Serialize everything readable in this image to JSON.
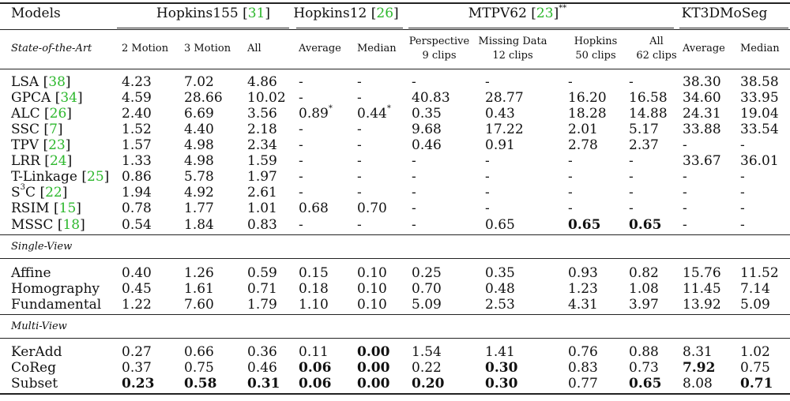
{
  "headers": {
    "models": "Models",
    "groups": [
      {
        "name": "Hopkins155",
        "cite": "31",
        "suffix": ""
      },
      {
        "name": "Hopkins12",
        "cite": "26",
        "suffix": ""
      },
      {
        "name": "MTPV62",
        "cite": "23",
        "suffix": "**"
      },
      {
        "name": "KT3DMoSeg",
        "cite": "",
        "suffix": ""
      }
    ],
    "subheaders": {
      "state_of_the_art": "State-of-the-Art",
      "cols": [
        {
          "l1": "2 Motion",
          "l2": ""
        },
        {
          "l1": "3 Motion",
          "l2": ""
        },
        {
          "l1": "All",
          "l2": ""
        },
        {
          "l1": "Average",
          "l2": ""
        },
        {
          "l1": "Median",
          "l2": ""
        },
        {
          "l1": "Perspective",
          "l2": "9 clips"
        },
        {
          "l1": "Missing Data",
          "l2": "12 clips"
        },
        {
          "l1": "Hopkins",
          "l2": "50 clips"
        },
        {
          "l1": "All",
          "l2": "62 clips"
        },
        {
          "l1": "Average",
          "l2": ""
        },
        {
          "l1": "Median",
          "l2": ""
        }
      ]
    }
  },
  "sections": [
    {
      "title": "",
      "rows": [
        {
          "name": "LSA",
          "cite": "38",
          "vals": [
            "4.23",
            "7.02",
            "4.86",
            "-",
            "-",
            "-",
            "-",
            "-",
            "-",
            "38.30",
            "38.58"
          ],
          "bold": []
        },
        {
          "name": "GPCA",
          "cite": "34",
          "vals": [
            "4.59",
            "28.66",
            "10.02",
            "-",
            "-",
            "40.83",
            "28.77",
            "16.20",
            "16.58",
            "34.60",
            "33.95"
          ],
          "bold": []
        },
        {
          "name": "ALC",
          "cite": "26",
          "vals": [
            "2.40",
            "6.69",
            "3.56",
            "0.89*",
            "0.44*",
            "0.35",
            "0.43",
            "18.28",
            "14.88",
            "24.31",
            "19.04"
          ],
          "bold": []
        },
        {
          "name": "SSC",
          "cite": "7",
          "vals": [
            "1.52",
            "4.40",
            "2.18",
            "-",
            "-",
            "9.68",
            "17.22",
            "2.01",
            "5.17",
            "33.88",
            "33.54"
          ],
          "bold": []
        },
        {
          "name": "TPV",
          "cite": "23",
          "vals": [
            "1.57",
            "4.98",
            "2.34",
            "-",
            "-",
            "0.46",
            "0.91",
            "2.78",
            "2.37",
            "-",
            "-"
          ],
          "bold": []
        },
        {
          "name": "LRR",
          "cite": "24",
          "vals": [
            "1.33",
            "4.98",
            "1.59",
            "-",
            "-",
            "-",
            "-",
            "-",
            "-",
            "33.67",
            "36.01"
          ],
          "bold": []
        },
        {
          "name": "T-Linkage",
          "cite": "25",
          "vals": [
            "0.86",
            "5.78",
            "1.97",
            "-",
            "-",
            "-",
            "-",
            "-",
            "-",
            "-",
            "-"
          ],
          "bold": []
        },
        {
          "name": "S³C",
          "cite": "22",
          "vals": [
            "1.94",
            "4.92",
            "2.61",
            "-",
            "-",
            "-",
            "-",
            "-",
            "-",
            "-",
            "-"
          ],
          "bold": []
        },
        {
          "name": "RSIM",
          "cite": "15",
          "vals": [
            "0.78",
            "1.77",
            "1.01",
            "0.68",
            "0.70",
            "-",
            "-",
            "-",
            "-",
            "-",
            "-"
          ],
          "bold": []
        },
        {
          "name": "MSSC",
          "cite": "18",
          "vals": [
            "0.54",
            "1.84",
            "0.83",
            "-",
            "-",
            "-",
            "0.65",
            "0.65",
            "0.65",
            "-",
            "-"
          ],
          "bold": [
            7,
            8
          ]
        }
      ]
    },
    {
      "title": "Single-View",
      "rows": [
        {
          "name": "Affine",
          "cite": "",
          "vals": [
            "0.40",
            "1.26",
            "0.59",
            "0.15",
            "0.10",
            "0.25",
            "0.35",
            "0.93",
            "0.82",
            "15.76",
            "11.52"
          ],
          "bold": []
        },
        {
          "name": "Homography",
          "cite": "",
          "vals": [
            "0.45",
            "1.61",
            "0.71",
            "0.18",
            "0.10",
            "0.70",
            "0.48",
            "1.23",
            "1.08",
            "11.45",
            "7.14"
          ],
          "bold": []
        },
        {
          "name": "Fundamental",
          "cite": "",
          "vals": [
            "1.22",
            "7.60",
            "1.79",
            "1.10",
            "0.10",
            "5.09",
            "2.53",
            "4.31",
            "3.97",
            "13.92",
            "5.09"
          ],
          "bold": []
        }
      ]
    },
    {
      "title": "Multi-View",
      "rows": [
        {
          "name": "KerAdd",
          "cite": "",
          "vals": [
            "0.27",
            "0.66",
            "0.36",
            "0.11",
            "0.00",
            "1.54",
            "1.41",
            "0.76",
            "0.88",
            "8.31",
            "1.02"
          ],
          "bold": [
            4
          ]
        },
        {
          "name": "CoReg",
          "cite": "",
          "vals": [
            "0.37",
            "0.75",
            "0.46",
            "0.06",
            "0.00",
            "0.22",
            "0.30",
            "0.83",
            "0.73",
            "7.92",
            "0.75"
          ],
          "bold": [
            3,
            4,
            6,
            9
          ]
        },
        {
          "name": "Subset",
          "cite": "",
          "vals": [
            "0.23",
            "0.58",
            "0.31",
            "0.06",
            "0.00",
            "0.20",
            "0.30",
            "0.77",
            "0.65",
            "8.08",
            "0.71"
          ],
          "bold": [
            0,
            1,
            2,
            3,
            4,
            5,
            6,
            8,
            10
          ]
        }
      ]
    }
  ]
}
